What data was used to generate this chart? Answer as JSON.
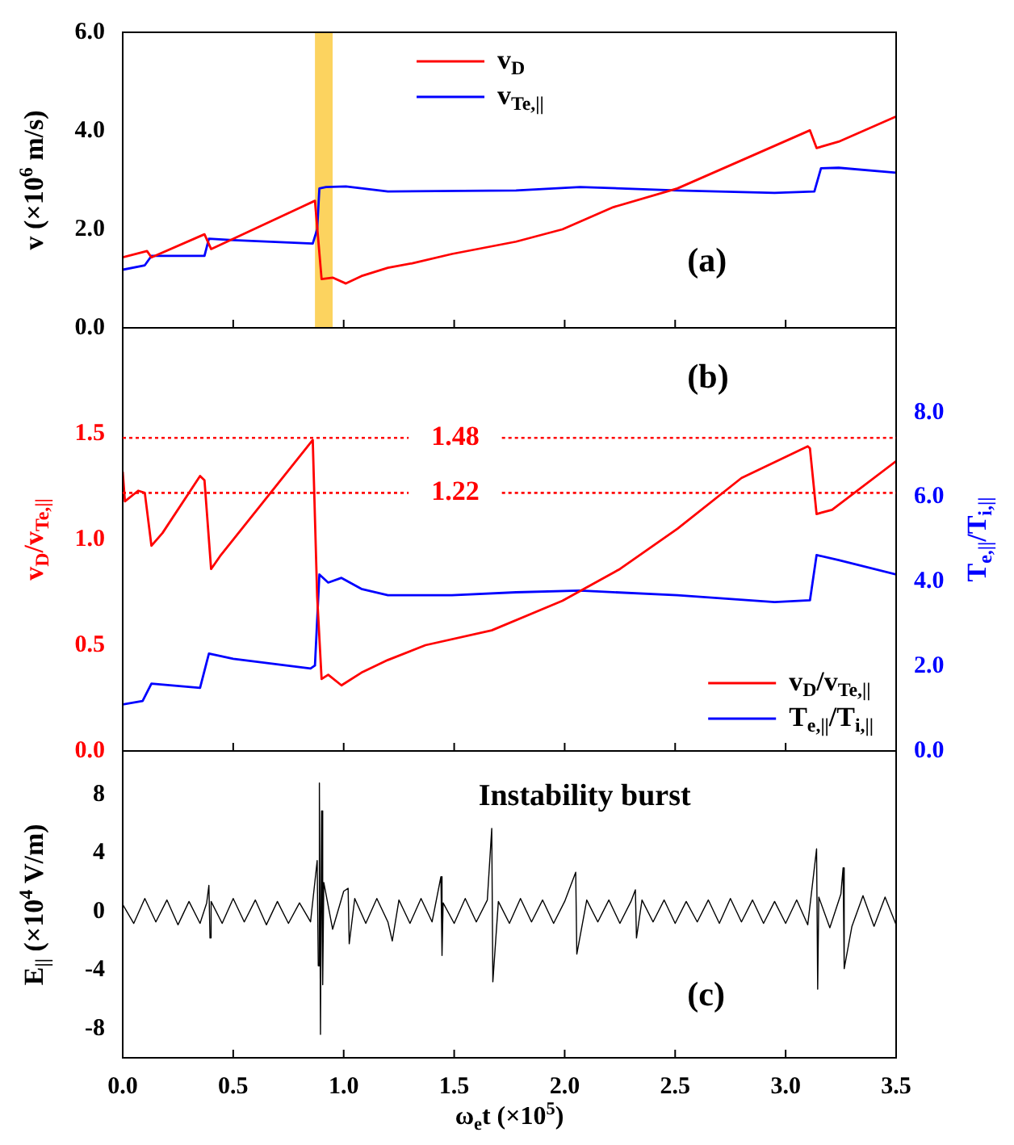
{
  "chart_data": [
    {
      "type": "line",
      "ylabel": "v (×10$^{6}$ m/s)",
      "xlim": [
        0,
        3.5
      ],
      "xticks": [
        0.5,
        1,
        1.5,
        2,
        2.5,
        3
      ],
      "ylim": [
        0,
        6
      ],
      "yticks": [
        {
          "value": 0,
          "label": "0.0"
        },
        {
          "value": 2,
          "label": "2.0"
        },
        {
          "value": 4,
          "label": "4.0"
        },
        {
          "value": 6,
          "label": "6.0"
        }
      ],
      "tick_labels": "y",
      "legend": "top",
      "marker": "none",
      "annotations": [
        "(a)"
      ],
      "bands": [
        {
          "axis": "x",
          "from": 0.87,
          "to": 0.95,
          "color": "#fcd35f"
        }
      ],
      "series": [
        {
          "name": "v$_{D}$",
          "color": "#ff0000",
          "x": [
            0,
            0.11,
            0.13,
            0.37,
            0.4,
            0.87,
            0.9,
            0.95,
            1.01,
            1.08,
            1.2,
            1.31,
            1.49,
            1.78,
            1.99,
            2.22,
            2.51,
            2.8,
            3.11,
            3.14,
            3.24,
            3.5
          ],
          "values": [
            1.43,
            1.56,
            1.43,
            1.9,
            1.6,
            2.58,
            0.99,
            1.02,
            0.9,
            1.05,
            1.22,
            1.31,
            1.5,
            1.75,
            2.0,
            2.45,
            2.83,
            3.4,
            4.01,
            3.65,
            3.78,
            4.29
          ]
        },
        {
          "name": "v$_{Te,||}$",
          "color": "#0000ff",
          "x": [
            0,
            0.1,
            0.13,
            0.37,
            0.39,
            0.5,
            0.86,
            0.88,
            0.89,
            0.92,
            1.01,
            1.2,
            1.78,
            2.07,
            2.51,
            2.95,
            3.13,
            3.16,
            3.24,
            3.5
          ],
          "values": [
            1.18,
            1.27,
            1.46,
            1.46,
            1.81,
            1.78,
            1.71,
            2.0,
            2.83,
            2.86,
            2.87,
            2.77,
            2.79,
            2.86,
            2.79,
            2.74,
            2.77,
            3.24,
            3.25,
            3.15
          ]
        }
      ]
    },
    {
      "type": "line",
      "ylabel": "v$_{D}$/v$_{Te,||}$",
      "y2label": "T$_{e,||}$/T$_{i,||}$",
      "xlim": [
        0,
        3.5
      ],
      "xticks": [
        0.5,
        1,
        1.5,
        2,
        2.5,
        3
      ],
      "ylim": [
        0,
        2
      ],
      "yticks": [
        {
          "value": 0,
          "label": "0.0"
        },
        0.5,
        {
          "value": 1,
          "label": "1.0"
        },
        1.5
      ],
      "y2lim": [
        0,
        10
      ],
      "y2ticks": [
        {
          "value": 0,
          "label": "0.0"
        },
        {
          "value": 2,
          "label": "2.0"
        },
        {
          "value": 4,
          "label": "4.0"
        },
        {
          "value": 6,
          "label": "6.0"
        },
        {
          "value": 8,
          "label": "8.0"
        }
      ],
      "tick_labels": "y",
      "legend": "bottom right",
      "marker": "none",
      "annotations": [
        "(b)"
      ],
      "ref_lines": [
        {
          "axis": "y",
          "value": 1.48,
          "label": "1.48",
          "color": "#ff0000",
          "line_style": "dotted"
        },
        {
          "axis": "y",
          "value": 1.22,
          "label": "1.22",
          "color": "#ff0000",
          "line_style": "dotted"
        }
      ],
      "series": [
        {
          "name": "v$_{D}$/v$_{Te,||}$",
          "color": "#ff0000",
          "x": [
            0,
            0.01,
            0.07,
            0.1,
            0.13,
            0.18,
            0.35,
            0.37,
            0.4,
            0.44,
            0.86,
            0.88,
            0.9,
            0.93,
            0.99,
            1.08,
            1.2,
            1.37,
            1.67,
            1.99,
            2.25,
            2.51,
            2.8,
            3.1,
            3.11,
            3.14,
            3.21,
            3.5
          ],
          "values": [
            1.32,
            1.18,
            1.23,
            1.22,
            0.97,
            1.03,
            1.3,
            1.28,
            0.86,
            0.92,
            1.47,
            0.73,
            0.34,
            0.36,
            0.31,
            0.37,
            0.43,
            0.5,
            0.57,
            0.71,
            0.86,
            1.05,
            1.29,
            1.44,
            1.43,
            1.12,
            1.14,
            1.37
          ]
        },
        {
          "name": "T$_{e,||}$/T$_{i,||}$",
          "color": "#0000ff",
          "axis": "y2",
          "x": [
            0,
            0.09,
            0.13,
            0.35,
            0.39,
            0.5,
            0.85,
            0.87,
            0.89,
            0.93,
            0.99,
            1.08,
            1.2,
            1.49,
            1.78,
            2.07,
            2.51,
            2.95,
            3.11,
            3.14,
            3.24,
            3.5
          ],
          "values": [
            1.1,
            1.18,
            1.59,
            1.49,
            2.3,
            2.18,
            1.95,
            2.02,
            4.17,
            3.98,
            4.09,
            3.83,
            3.68,
            3.68,
            3.75,
            3.79,
            3.68,
            3.52,
            3.56,
            4.63,
            4.51,
            4.17
          ]
        }
      ]
    },
    {
      "type": "line",
      "ylabel": "E$_{||}$ (×10$^{4}$ V/m)",
      "xlabel": "ω$_{e}$t (×10$^{5}$)",
      "xlim": [
        0,
        3.5
      ],
      "xticks": [
        {
          "value": 0,
          "label": "0.0"
        },
        0.5,
        {
          "value": 1,
          "label": "1.0"
        },
        1.5,
        {
          "value": 2,
          "label": "2.0"
        },
        2.5,
        {
          "value": 3,
          "label": "3.0"
        },
        3.5
      ],
      "ylim": [
        -10,
        11
      ],
      "yticks": [
        -8,
        -4,
        0,
        4,
        8
      ],
      "marker": "none",
      "annotations": [
        "Instability burst",
        "(c)"
      ],
      "series": [
        {
          "color": "#000000",
          "x": [
            0,
            0.05,
            0.1,
            0.15,
            0.2,
            0.25,
            0.3,
            0.35,
            0.38,
            0.39,
            0.395,
            0.4,
            0.45,
            0.5,
            0.55,
            0.6,
            0.65,
            0.7,
            0.75,
            0.8,
            0.85,
            0.88,
            0.885,
            0.89,
            0.895,
            0.9,
            0.905,
            0.91,
            0.95,
            1.0,
            1.02,
            1.025,
            1.05,
            1.1,
            1.15,
            1.2,
            1.22,
            1.25,
            1.3,
            1.35,
            1.4,
            1.44,
            1.445,
            1.45,
            1.5,
            1.55,
            1.6,
            1.65,
            1.67,
            1.675,
            1.7,
            1.75,
            1.8,
            1.85,
            1.9,
            1.95,
            2.0,
            2.05,
            2.055,
            2.1,
            2.15,
            2.2,
            2.25,
            2.3,
            2.32,
            2.325,
            2.35,
            2.4,
            2.45,
            2.5,
            2.55,
            2.6,
            2.65,
            2.7,
            2.75,
            2.8,
            2.85,
            2.9,
            2.95,
            3.0,
            3.05,
            3.1,
            3.14,
            3.145,
            3.15,
            3.2,
            3.25,
            3.26,
            3.265,
            3.3,
            3.35,
            3.4,
            3.45,
            3.5
          ],
          "values": [
            0.5,
            -0.8,
            0.9,
            -0.7,
            0.8,
            -0.9,
            0.7,
            -0.8,
            0.6,
            1.8,
            -1.8,
            0.7,
            -0.8,
            0.9,
            -0.7,
            0.8,
            -0.9,
            0.7,
            -0.8,
            0.6,
            -0.7,
            3.5,
            -3.7,
            8.8,
            -8.4,
            6.9,
            -5.0,
            2.0,
            -1.2,
            1.4,
            1.6,
            -2.2,
            0.9,
            -0.8,
            0.9,
            -0.7,
            -2.0,
            0.8,
            -0.8,
            0.9,
            -0.7,
            2.4,
            -3.0,
            0.6,
            -0.8,
            0.9,
            -0.7,
            0.8,
            5.7,
            -4.8,
            0.7,
            -0.8,
            0.9,
            -0.7,
            0.8,
            -0.8,
            0.7,
            2.7,
            -2.9,
            0.8,
            -0.7,
            0.8,
            -0.8,
            0.7,
            1.5,
            -1.8,
            0.8,
            -0.7,
            0.8,
            -0.8,
            0.7,
            -0.7,
            0.8,
            -0.8,
            0.9,
            -0.7,
            0.8,
            -0.8,
            0.7,
            -0.8,
            0.8,
            -0.9,
            4.3,
            -5.3,
            1.0,
            -1.1,
            1.2,
            3.0,
            -3.9,
            -1.0,
            1.1,
            -1.0,
            1.0,
            -0.9
          ]
        }
      ]
    }
  ]
}
